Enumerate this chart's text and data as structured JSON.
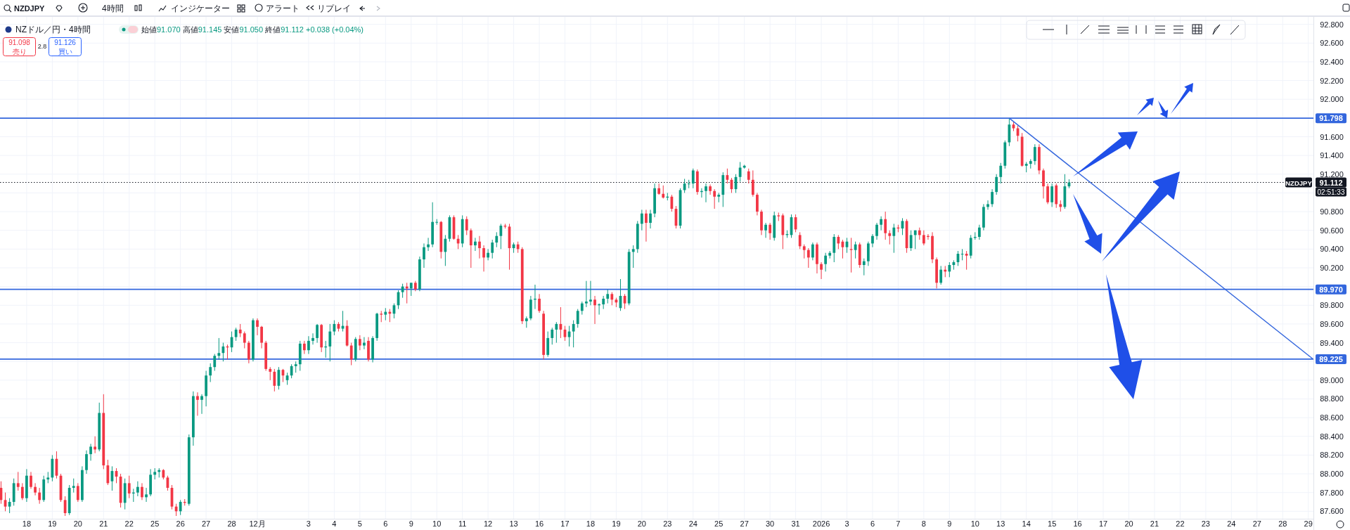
{
  "chart_data": {
    "type": "candlestick",
    "title": "NZドル／円・4時間",
    "categories": [
      null,
      null,
      null,
      null,
      null,
      null,
      "18",
      null,
      null,
      null,
      null,
      null,
      "19",
      null,
      null,
      null,
      null,
      null,
      "20",
      null,
      null,
      null,
      null,
      null,
      "21",
      null,
      null,
      null,
      null,
      null,
      "22",
      null,
      null,
      null,
      null,
      null,
      "25",
      null,
      null,
      null,
      null,
      null,
      "26",
      null,
      null,
      null,
      null,
      null,
      "27",
      null,
      null,
      null,
      null,
      null,
      "28",
      null,
      null,
      null,
      null,
      null,
      "12月",
      null,
      null,
      null,
      null,
      null,
      null,
      null,
      null,
      null,
      null,
      null,
      "3",
      null,
      null,
      null,
      null,
      null,
      "4",
      null,
      null,
      null,
      null,
      null,
      "5",
      null,
      null,
      null,
      null,
      null,
      "6",
      null,
      null,
      null,
      null,
      null,
      "9",
      null,
      null,
      null,
      null,
      null,
      "10",
      null,
      null,
      null,
      null,
      null,
      "11",
      null,
      null,
      null,
      null,
      null,
      "12",
      null,
      null,
      null,
      null,
      null,
      "13",
      null,
      null,
      null,
      null,
      null,
      "16",
      null,
      null,
      null,
      null,
      null,
      "17",
      null,
      null,
      null,
      null,
      null,
      "18",
      null,
      null,
      null,
      null,
      null,
      "19",
      null,
      null,
      null,
      null,
      null,
      "20",
      null,
      null,
      null,
      null,
      null,
      "23",
      null,
      null,
      null,
      null,
      null,
      "24",
      null,
      null,
      null,
      null,
      null,
      "25",
      null,
      null,
      null,
      null,
      null,
      "27",
      null,
      null,
      null,
      null,
      null,
      "30",
      null,
      null,
      null,
      null,
      null,
      "31",
      null,
      null,
      null,
      null,
      null,
      "2026",
      null,
      null,
      null,
      null,
      null,
      "3",
      null,
      null,
      null,
      null,
      null,
      "6",
      null,
      null,
      null,
      null,
      null,
      "7",
      null,
      null,
      null,
      null,
      null,
      "8",
      null,
      null,
      null,
      null,
      null,
      "9",
      null,
      null,
      null,
      null,
      null,
      "10",
      null,
      null,
      null,
      null,
      null,
      "13",
      null,
      null,
      null,
      null,
      null,
      "14",
      null,
      null,
      null,
      null,
      null,
      "15",
      null,
      null,
      null,
      null,
      null,
      "16",
      null,
      null,
      null,
      null,
      null,
      "17",
      null,
      null,
      null,
      null,
      null,
      "20",
      null,
      null,
      null,
      null,
      null,
      "21",
      null,
      null,
      null,
      null,
      null,
      "22",
      null,
      null,
      null,
      null,
      null,
      "23",
      null,
      null,
      null,
      null,
      null,
      "24",
      null,
      null,
      null,
      null,
      null,
      "27",
      null,
      null,
      null,
      null,
      null,
      "28",
      null,
      null,
      null,
      null,
      null,
      "29",
      null
    ],
    "ohlc": [
      [
        87.85,
        87.92,
        87.68,
        87.72
      ],
      [
        87.72,
        87.8,
        87.6,
        87.65
      ],
      [
        87.65,
        87.74,
        87.58,
        87.7
      ],
      [
        87.7,
        87.95,
        87.66,
        87.9
      ],
      [
        87.9,
        88.02,
        87.82,
        87.86
      ],
      [
        87.86,
        87.9,
        87.72,
        87.74
      ],
      [
        87.74,
        88.05,
        87.7,
        87.98
      ],
      [
        87.98,
        88.02,
        87.84,
        87.86
      ],
      [
        87.86,
        87.9,
        87.77,
        87.8
      ],
      [
        87.8,
        87.85,
        87.68,
        87.72
      ],
      [
        87.72,
        87.98,
        87.7,
        87.94
      ],
      [
        87.94,
        88.02,
        87.9,
        87.96
      ],
      [
        87.96,
        88.2,
        87.92,
        88.16
      ],
      [
        88.16,
        88.24,
        87.95,
        87.98
      ],
      [
        87.98,
        88.0,
        87.7,
        87.72
      ],
      [
        87.72,
        87.76,
        87.55,
        87.58
      ],
      [
        87.58,
        87.88,
        87.56,
        87.85
      ],
      [
        87.85,
        87.95,
        87.8,
        87.87
      ],
      [
        87.87,
        87.9,
        87.7,
        87.72
      ],
      [
        87.72,
        88.08,
        87.7,
        88.04
      ],
      [
        88.04,
        88.25,
        88.0,
        88.21
      ],
      [
        88.21,
        88.32,
        88.14,
        88.29
      ],
      [
        88.29,
        88.4,
        88.22,
        88.26
      ],
      [
        88.26,
        88.76,
        88.24,
        88.65
      ],
      [
        88.65,
        88.85,
        88.05,
        88.09
      ],
      [
        88.09,
        88.15,
        87.88,
        87.9
      ],
      [
        87.92,
        88.08,
        87.82,
        88.03
      ],
      [
        88.03,
        88.06,
        87.9,
        87.97
      ],
      [
        87.97,
        88.0,
        87.64,
        87.69
      ],
      [
        87.69,
        87.95,
        87.62,
        87.9
      ],
      [
        87.9,
        87.98,
        87.74,
        87.79
      ],
      [
        87.79,
        87.84,
        87.7,
        87.8
      ],
      [
        87.8,
        87.92,
        87.76,
        87.86
      ],
      [
        87.86,
        87.9,
        87.72,
        87.75
      ],
      [
        87.75,
        87.85,
        87.7,
        87.78
      ],
      [
        87.78,
        88.05,
        87.76,
        87.99
      ],
      [
        87.99,
        88.06,
        87.94,
        88.02
      ],
      [
        88.02,
        88.06,
        87.96,
        88.04
      ],
      [
        88.04,
        88.05,
        87.94,
        87.96
      ],
      [
        87.96,
        87.98,
        87.82,
        87.85
      ],
      [
        87.85,
        87.88,
        87.62,
        87.65
      ],
      [
        87.65,
        87.68,
        87.55,
        87.6
      ],
      [
        87.6,
        87.72,
        87.56,
        87.7
      ],
      [
        87.7,
        87.73,
        87.66,
        87.69
      ],
      [
        87.68,
        88.42,
        87.66,
        88.39
      ],
      [
        88.39,
        88.88,
        88.3,
        88.83
      ],
      [
        88.83,
        88.87,
        88.62,
        88.79
      ],
      [
        88.79,
        88.85,
        88.64,
        88.83
      ],
      [
        88.83,
        89.1,
        88.72,
        89.05
      ],
      [
        89.05,
        89.18,
        88.98,
        89.14
      ],
      [
        89.14,
        89.28,
        89.1,
        89.26
      ],
      [
        89.26,
        89.45,
        89.22,
        89.29
      ],
      [
        89.29,
        89.4,
        89.2,
        89.36
      ],
      [
        89.36,
        89.38,
        89.22,
        89.35
      ],
      [
        89.35,
        89.52,
        89.3,
        89.46
      ],
      [
        89.46,
        89.56,
        89.42,
        89.54
      ],
      [
        89.54,
        89.6,
        89.46,
        89.5
      ],
      [
        89.5,
        89.52,
        89.34,
        89.4
      ],
      [
        89.4,
        89.42,
        89.18,
        89.22
      ],
      [
        89.22,
        89.66,
        89.2,
        89.64
      ],
      [
        89.64,
        89.66,
        89.48,
        89.57
      ],
      [
        89.57,
        89.58,
        89.34,
        89.4
      ],
      [
        89.4,
        89.42,
        89.1,
        89.12
      ],
      [
        89.12,
        89.14,
        89.0,
        89.09
      ],
      [
        89.09,
        89.12,
        88.88,
        88.94
      ],
      [
        88.94,
        89.14,
        88.9,
        89.11
      ],
      [
        89.11,
        89.12,
        88.98,
        89.05
      ],
      [
        89.0,
        89.08,
        88.95,
        89.05
      ],
      [
        89.05,
        89.17,
        89.02,
        89.15
      ],
      [
        89.15,
        89.2,
        89.08,
        89.17
      ],
      [
        89.17,
        89.42,
        89.1,
        89.39
      ],
      [
        89.39,
        89.42,
        89.28,
        89.32
      ],
      [
        89.32,
        89.47,
        89.28,
        89.42
      ],
      [
        89.42,
        89.5,
        89.38,
        89.45
      ],
      [
        89.45,
        89.6,
        89.4,
        89.59
      ],
      [
        89.59,
        89.6,
        89.3,
        89.35
      ],
      [
        89.35,
        89.42,
        89.24,
        89.36
      ],
      [
        89.36,
        89.6,
        89.2,
        89.52
      ],
      [
        89.52,
        89.64,
        89.48,
        89.6
      ],
      [
        89.6,
        89.62,
        89.52,
        89.55
      ],
      [
        89.55,
        89.74,
        89.52,
        89.58
      ],
      [
        89.58,
        89.64,
        89.36,
        89.37
      ],
      [
        89.37,
        89.4,
        89.16,
        89.22
      ],
      [
        89.22,
        89.46,
        89.2,
        89.44
      ],
      [
        89.44,
        89.48,
        89.32,
        89.37
      ],
      [
        89.37,
        89.46,
        89.33,
        89.4
      ],
      [
        89.42,
        89.46,
        89.2,
        89.22
      ],
      [
        89.22,
        89.47,
        89.19,
        89.45
      ],
      [
        89.45,
        89.72,
        89.42,
        89.71
      ],
      [
        89.71,
        89.74,
        89.62,
        89.7
      ],
      [
        89.7,
        89.77,
        89.64,
        89.73
      ],
      [
        89.73,
        89.76,
        89.62,
        89.71
      ],
      [
        89.71,
        89.82,
        89.66,
        89.8
      ],
      [
        89.8,
        89.96,
        89.76,
        89.94
      ],
      [
        89.94,
        90.03,
        89.88,
        90.0
      ],
      [
        90.0,
        90.04,
        89.82,
        89.98
      ],
      [
        89.98,
        90.04,
        89.9,
        90.04
      ],
      [
        90.04,
        90.06,
        89.95,
        89.97
      ],
      [
        89.97,
        90.32,
        89.95,
        90.29
      ],
      [
        90.29,
        90.46,
        90.2,
        90.42
      ],
      [
        90.42,
        90.52,
        90.38,
        90.45
      ],
      [
        90.45,
        90.9,
        90.42,
        90.69
      ],
      [
        90.69,
        90.72,
        90.66,
        90.69
      ],
      [
        90.69,
        90.7,
        90.3,
        90.37
      ],
      [
        90.37,
        90.55,
        90.22,
        90.51
      ],
      [
        90.51,
        90.76,
        90.48,
        90.74
      ],
      [
        90.74,
        90.76,
        90.5,
        90.51
      ],
      [
        90.51,
        90.55,
        90.4,
        90.46
      ],
      [
        90.46,
        90.76,
        90.42,
        90.72
      ],
      [
        90.72,
        90.75,
        90.55,
        90.6
      ],
      [
        90.6,
        90.62,
        90.2,
        90.44
      ],
      [
        90.44,
        90.52,
        90.38,
        90.48
      ],
      [
        90.48,
        90.54,
        90.3,
        90.41
      ],
      [
        90.41,
        90.44,
        90.16,
        90.31
      ],
      [
        90.31,
        90.4,
        90.28,
        90.36
      ],
      [
        90.36,
        90.5,
        90.3,
        90.47
      ],
      [
        90.47,
        90.58,
        90.42,
        90.54
      ],
      [
        90.54,
        90.67,
        90.4,
        90.65
      ],
      [
        90.65,
        90.67,
        90.62,
        90.64
      ],
      [
        90.64,
        90.67,
        90.18,
        90.41
      ],
      [
        90.41,
        90.47,
        90.36,
        90.45
      ],
      [
        90.45,
        90.48,
        90.36,
        90.4
      ],
      [
        90.4,
        90.42,
        89.6,
        89.63
      ],
      [
        89.63,
        89.68,
        89.56,
        89.66
      ],
      [
        89.66,
        89.9,
        89.64,
        89.86
      ],
      [
        89.86,
        90.02,
        89.76,
        89.87
      ],
      [
        89.87,
        89.92,
        89.72,
        89.74
      ],
      [
        89.71,
        89.74,
        89.22,
        89.27
      ],
      [
        89.27,
        89.52,
        89.25,
        89.45
      ],
      [
        89.45,
        89.56,
        89.38,
        89.54
      ],
      [
        89.54,
        89.62,
        89.4,
        89.6
      ],
      [
        89.6,
        89.78,
        89.45,
        89.54
      ],
      [
        89.54,
        89.58,
        89.42,
        89.46
      ],
      [
        89.46,
        89.58,
        89.36,
        89.52
      ],
      [
        89.52,
        89.64,
        89.35,
        89.6
      ],
      [
        89.6,
        89.76,
        89.56,
        89.74
      ],
      [
        89.74,
        89.84,
        89.7,
        89.82
      ],
      [
        89.82,
        90.06,
        89.78,
        89.84
      ],
      [
        89.84,
        90.06,
        89.8,
        89.86
      ],
      [
        89.86,
        89.9,
        89.6,
        89.8
      ],
      [
        89.8,
        89.82,
        89.7,
        89.81
      ],
      [
        89.81,
        89.9,
        89.76,
        89.87
      ],
      [
        89.87,
        89.97,
        89.82,
        89.92
      ],
      [
        89.92,
        89.94,
        89.8,
        89.86
      ],
      [
        89.86,
        89.88,
        89.78,
        89.83
      ],
      [
        89.77,
        90.08,
        89.74,
        89.9
      ],
      [
        89.9,
        89.92,
        89.76,
        89.82
      ],
      [
        89.82,
        90.4,
        89.8,
        90.37
      ],
      [
        90.37,
        90.44,
        90.2,
        90.4
      ],
      [
        90.4,
        90.7,
        90.36,
        90.67
      ],
      [
        90.67,
        90.82,
        90.6,
        90.78
      ],
      [
        90.78,
        90.82,
        90.48,
        90.68
      ],
      [
        90.68,
        90.82,
        90.62,
        90.78
      ],
      [
        90.78,
        91.1,
        90.74,
        91.05
      ],
      [
        91.05,
        91.1,
        90.98,
        90.99
      ],
      [
        90.99,
        91.08,
        90.94,
        90.95
      ],
      [
        90.95,
        91.0,
        90.92,
        90.96
      ],
      [
        90.96,
        90.98,
        90.8,
        90.83
      ],
      [
        90.83,
        90.86,
        90.62,
        90.65
      ],
      [
        90.65,
        91.05,
        90.62,
        91.03
      ],
      [
        91.03,
        91.15,
        91.0,
        91.1
      ],
      [
        91.1,
        91.14,
        91.05,
        91.1
      ],
      [
        91.1,
        91.26,
        91.05,
        91.24
      ],
      [
        91.23,
        91.25,
        90.98,
        91.01
      ],
      [
        91.01,
        91.05,
        90.95,
        91.02
      ],
      [
        91.02,
        91.1,
        90.9,
        91.07
      ],
      [
        91.07,
        91.09,
        90.98,
        91.02
      ],
      [
        91.02,
        91.04,
        90.83,
        90.96
      ],
      [
        90.96,
        91.0,
        90.9,
        90.98
      ],
      [
        90.98,
        91.22,
        90.85,
        91.19
      ],
      [
        91.19,
        91.26,
        91.1,
        91.14
      ],
      [
        91.14,
        91.16,
        91.0,
        91.04
      ],
      [
        91.04,
        91.2,
        91.0,
        91.17
      ],
      [
        91.17,
        91.33,
        91.12,
        91.27
      ],
      [
        91.27,
        91.3,
        91.26,
        91.29
      ],
      [
        91.23,
        91.26,
        91.1,
        91.14
      ],
      [
        91.14,
        91.24,
        90.96,
        90.98
      ],
      [
        90.98,
        91.0,
        90.76,
        90.8
      ],
      [
        90.8,
        90.82,
        90.55,
        90.6
      ],
      [
        90.6,
        90.68,
        90.52,
        90.66
      ],
      [
        90.66,
        90.68,
        90.5,
        90.57
      ],
      [
        90.52,
        90.8,
        90.49,
        90.76
      ],
      [
        90.76,
        90.79,
        90.7,
        90.75
      ],
      [
        90.76,
        90.78,
        90.4,
        90.55
      ],
      [
        90.55,
        90.6,
        90.52,
        90.56
      ],
      [
        90.55,
        90.77,
        90.52,
        90.74
      ],
      [
        90.74,
        90.77,
        90.58,
        90.61
      ],
      [
        90.55,
        90.58,
        90.4,
        90.43
      ],
      [
        90.43,
        90.45,
        90.3,
        90.39
      ],
      [
        90.39,
        90.41,
        90.2,
        90.31
      ],
      [
        90.31,
        90.47,
        90.28,
        90.45
      ],
      [
        90.45,
        90.47,
        90.14,
        90.24
      ],
      [
        90.24,
        90.26,
        90.08,
        90.18
      ],
      [
        90.24,
        90.36,
        90.16,
        90.33
      ],
      [
        90.33,
        90.38,
        90.3,
        90.36
      ],
      [
        90.36,
        90.56,
        90.26,
        90.53
      ],
      [
        90.53,
        90.55,
        90.4,
        90.46
      ],
      [
        90.48,
        90.5,
        90.3,
        90.42
      ],
      [
        90.42,
        90.52,
        90.36,
        90.48
      ],
      [
        90.4,
        90.52,
        90.15,
        90.39
      ],
      [
        90.39,
        90.48,
        90.3,
        90.45
      ],
      [
        90.45,
        90.47,
        90.2,
        90.23
      ],
      [
        90.23,
        90.3,
        90.12,
        90.27
      ],
      [
        90.27,
        90.48,
        90.22,
        90.46
      ],
      [
        90.46,
        90.56,
        90.42,
        90.54
      ],
      [
        90.54,
        90.68,
        90.5,
        90.66
      ],
      [
        90.66,
        90.75,
        90.6,
        90.72
      ],
      [
        90.72,
        90.8,
        90.5,
        90.57
      ],
      [
        90.57,
        90.6,
        90.45,
        90.54
      ],
      [
        90.54,
        90.67,
        90.36,
        90.63
      ],
      [
        90.63,
        90.66,
        90.58,
        90.62
      ],
      [
        90.62,
        90.73,
        90.55,
        90.7
      ],
      [
        90.7,
        90.72,
        90.36,
        90.41
      ],
      [
        90.41,
        90.6,
        90.38,
        90.55
      ],
      [
        90.55,
        90.6,
        90.4,
        90.6
      ],
      [
        90.6,
        90.63,
        90.5,
        90.55
      ],
      [
        90.55,
        90.6,
        90.44,
        90.46
      ],
      [
        90.54,
        90.56,
        90.5,
        90.53
      ],
      [
        90.54,
        90.58,
        90.25,
        90.29
      ],
      [
        90.29,
        90.31,
        89.98,
        90.04
      ],
      [
        90.04,
        90.22,
        90.02,
        90.18
      ],
      [
        90.18,
        90.22,
        90.1,
        90.16
      ],
      [
        90.16,
        90.26,
        90.1,
        90.23
      ],
      [
        90.23,
        90.28,
        90.18,
        90.26
      ],
      [
        90.26,
        90.38,
        90.22,
        90.35
      ],
      [
        90.35,
        90.4,
        90.28,
        90.35
      ],
      [
        90.35,
        90.38,
        90.18,
        90.33
      ],
      [
        90.33,
        90.55,
        90.3,
        90.52
      ],
      [
        90.52,
        90.58,
        90.5,
        90.53
      ],
      [
        90.53,
        90.66,
        90.5,
        90.63
      ],
      [
        90.63,
        90.88,
        90.6,
        90.85
      ],
      [
        90.85,
        90.92,
        90.82,
        90.88
      ],
      [
        90.88,
        91.04,
        90.85,
        91.01
      ],
      [
        91.01,
        91.2,
        90.98,
        91.17
      ],
      [
        91.17,
        91.32,
        91.1,
        91.29
      ],
      [
        91.29,
        91.56,
        91.26,
        91.54
      ],
      [
        91.54,
        91.798,
        91.5,
        91.73
      ],
      [
        91.73,
        91.76,
        91.66,
        91.69
      ],
      [
        91.69,
        91.72,
        91.55,
        91.61
      ],
      [
        91.6,
        91.64,
        91.28,
        91.29
      ],
      [
        91.29,
        91.33,
        91.22,
        91.31
      ],
      [
        91.31,
        91.36,
        91.26,
        91.34
      ],
      [
        91.34,
        91.52,
        91.3,
        91.49
      ],
      [
        91.49,
        91.52,
        91.2,
        91.24
      ],
      [
        91.24,
        91.26,
        90.94,
        91.07
      ],
      [
        91.07,
        91.1,
        90.88,
        90.9
      ],
      [
        90.9,
        91.1,
        90.85,
        91.07
      ],
      [
        91.08,
        91.1,
        90.84,
        90.88
      ],
      [
        90.88,
        90.92,
        90.8,
        90.85
      ],
      [
        90.85,
        91.2,
        90.83,
        91.07
      ],
      [
        91.07,
        91.145,
        91.05,
        91.112
      ],
      null,
      null,
      null,
      null,
      null,
      null,
      null,
      null,
      null,
      null,
      null,
      null,
      null,
      null,
      null,
      null,
      null,
      null,
      null,
      null,
      null,
      null,
      null,
      null,
      null,
      null,
      null,
      null,
      null,
      null,
      null,
      null,
      null,
      null,
      null,
      null,
      null,
      null,
      null,
      null,
      null,
      null,
      null,
      null,
      null,
      null,
      null,
      null,
      null,
      null,
      null,
      null,
      null,
      null,
      null,
      null,
      null
    ],
    "series": [
      {
        "type": "line",
        "color": "#3366dd",
        "values": [
          null,
          null,
          null,
          null,
          null,
          null,
          null,
          null,
          null,
          null,
          null,
          null,
          null,
          null,
          null,
          null,
          null,
          null,
          null,
          null,
          null,
          null,
          null,
          null,
          null,
          null,
          null,
          null,
          null,
          null,
          null,
          null,
          null,
          null,
          null,
          null,
          null,
          null,
          null,
          null,
          null,
          null,
          null,
          null,
          null,
          null,
          null,
          null,
          null,
          null,
          null,
          null,
          null,
          null,
          null,
          null,
          null,
          null,
          null,
          null,
          null,
          null,
          null,
          null,
          null,
          null,
          null,
          null,
          null,
          null,
          null,
          null,
          null,
          null,
          null,
          null,
          null,
          null,
          null,
          null,
          null,
          null,
          null,
          null,
          null,
          null,
          null,
          null,
          null,
          null,
          null,
          null,
          null,
          null,
          null,
          null,
          null,
          null,
          null,
          null,
          null,
          null,
          null,
          null,
          null,
          null,
          null,
          null,
          null,
          null,
          null,
          null,
          null,
          null,
          null,
          null,
          null,
          null,
          null,
          null,
          null,
          null,
          null,
          null,
          null,
          null,
          null,
          null,
          null,
          null,
          null,
          null,
          null,
          null,
          null,
          null,
          null,
          null,
          null,
          null,
          null,
          null,
          null,
          null,
          null,
          null,
          null,
          null,
          null,
          null,
          null,
          null,
          null,
          null,
          null,
          null,
          null,
          null,
          null,
          null,
          null,
          null,
          null,
          null,
          null,
          null,
          null,
          null,
          null,
          null,
          null,
          null,
          null,
          null,
          null,
          null,
          null,
          null,
          null,
          null,
          null,
          null,
          null,
          null,
          null,
          null,
          null,
          null,
          null,
          null,
          null,
          null,
          null,
          null,
          null,
          null,
          null,
          null,
          null,
          null,
          null,
          null,
          null,
          null,
          null,
          null,
          null,
          null,
          null,
          null,
          null,
          null,
          null,
          null,
          null,
          null,
          null,
          null,
          null,
          null,
          null,
          null,
          null,
          null,
          null,
          null,
          null,
          null,
          null,
          null,
          null,
          null,
          null,
          null,
          null,
          null,
          91.798,
          null,
          null,
          null,
          null,
          null,
          null,
          null,
          null,
          null,
          null,
          null,
          null,
          null,
          null,
          null,
          null,
          null,
          null,
          null,
          null,
          null,
          null,
          null,
          null,
          null,
          null,
          null,
          null,
          null,
          null,
          null,
          null,
          null,
          null,
          null,
          null,
          null,
          null,
          null,
          null,
          null,
          null,
          null,
          null,
          null,
          null,
          null,
          null,
          null,
          null,
          null,
          null,
          null,
          null,
          null,
          null,
          null,
          null,
          null,
          null,
          null,
          null,
          null,
          null,
          null,
          null,
          null,
          null,
          null,
          null,
          89.23
        ]
      }
    ],
    "ylim": [
      87.52,
      92.88
    ],
    "yticks": [
      {
        "value": 87.6,
        "label": "87.600"
      },
      {
        "value": 87.8,
        "label": "87.800"
      },
      {
        "value": 88.0,
        "label": "88.000"
      },
      {
        "value": 88.2,
        "label": "88.200"
      },
      {
        "value": 88.4,
        "label": "88.400"
      },
      {
        "value": 88.6,
        "label": "88.600"
      },
      {
        "value": 88.8,
        "label": "88.800"
      },
      {
        "value": 89.0,
        "label": "89.000"
      },
      {
        "value": 89.2,
        "label": null
      },
      {
        "value": 89.4,
        "label": "89.400"
      },
      {
        "value": 89.6,
        "label": "89.600"
      },
      {
        "value": 89.8,
        "label": "89.800"
      },
      {
        "value": 90.0,
        "label": null
      },
      {
        "value": 90.2,
        "label": "90.200"
      },
      {
        "value": 90.4,
        "label": "90.400"
      },
      {
        "value": 90.6,
        "label": "90.600"
      },
      {
        "value": 90.8,
        "label": "90.800"
      },
      {
        "value": 91.0,
        "label": null
      },
      {
        "value": 91.2,
        "label": "91.200"
      },
      {
        "value": 91.4,
        "label": "91.400"
      },
      {
        "value": 91.6,
        "label": "91.600"
      },
      {
        "value": 91.8,
        "label": null
      },
      {
        "value": 92.0,
        "label": "92.000"
      },
      {
        "value": 92.2,
        "label": "92.200"
      },
      {
        "value": 92.4,
        "label": "92.400"
      },
      {
        "value": 92.6,
        "label": "92.600"
      },
      {
        "value": 92.8,
        "label": "92.800"
      }
    ],
    "ref_lines": [
      {
        "axis": "y",
        "value": 91.798,
        "label": "91.798",
        "color": "#3366dd"
      },
      {
        "axis": "y",
        "value": 89.97,
        "label": "89.970",
        "color": "#3366dd"
      },
      {
        "axis": "y",
        "value": 89.225,
        "label": "89.225",
        "color": "#3366dd"
      },
      {
        "axis": "y",
        "value": 91.112,
        "label": "91.112",
        "color": "#131722",
        "line_style": "dotted"
      }
    ],
    "annotations": [
      "NZDJPY",
      "4時間",
      "インジケーター",
      "アラート",
      "リプレイ",
      "始値91.070 高値91.145 安値91.050 終値91.112 +0.038 (+0.04%)",
      "91.098",
      "売り",
      "2.8",
      "91.126",
      "買い",
      "NZDJPY",
      "02:51:33"
    ],
    "grid": true
  }
}
